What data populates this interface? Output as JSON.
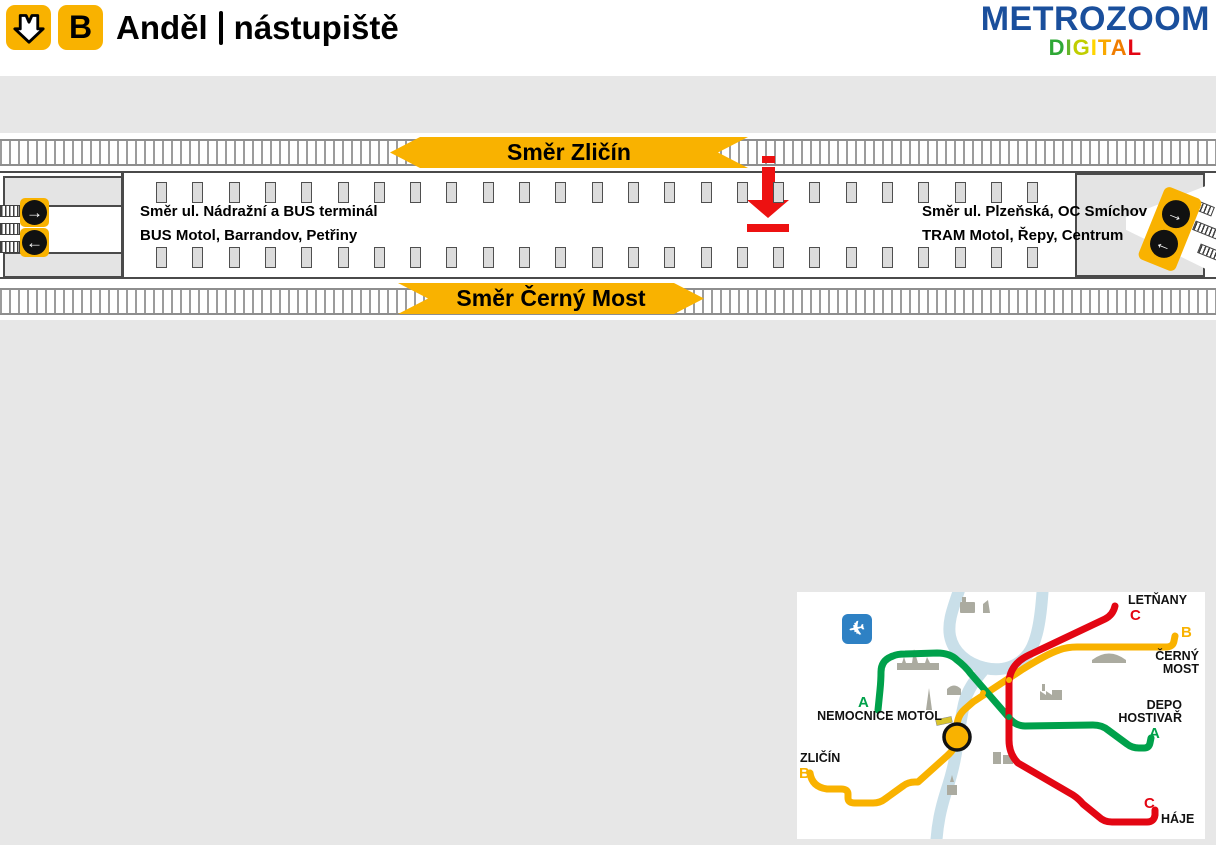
{
  "header": {
    "station_name": "Anděl",
    "subtitle": "nástupiště",
    "line_letter": "B",
    "brand": {
      "name": "METROZOOM",
      "sub": "DIGITAL",
      "sub_colors": [
        "#2FA836",
        "#66B52B",
        "#C0CE00",
        "#FFD500",
        "#F9A800",
        "#F07D00",
        "#E30613"
      ]
    }
  },
  "platform": {
    "banner_top": "Směr Zličín",
    "banner_bottom": "Směr Černý Most",
    "exit_left": {
      "line1": "Směr ul. Nádražní a BUS terminál",
      "line2": "BUS Motol, Barrandov, Petřiny"
    },
    "exit_right": {
      "line1": "Směr ul. Plzeňská, OC Smíchov",
      "line2": "TRAM Motol, Řepy, Centrum"
    },
    "escalator_arrows": {
      "right": "→",
      "left": "←"
    }
  },
  "map": {
    "stations": [
      {
        "name": "LETŇANY",
        "line": "C"
      },
      {
        "name": "ČERNÝ MOST",
        "line": "B"
      },
      {
        "name": "DEPO HOSTIVAŘ",
        "line": "A"
      },
      {
        "name": "NEMOCNICE MOTOL",
        "line": "A"
      },
      {
        "name": "ZLIČÍN",
        "line": "B"
      },
      {
        "name": "HÁJE",
        "line": "C"
      }
    ],
    "lines": [
      {
        "id": "A",
        "color": "#00A14B"
      },
      {
        "id": "B",
        "color": "#F9B200"
      },
      {
        "id": "C",
        "color": "#E30613"
      }
    ]
  },
  "colors": {
    "metro_yellow": "#F9B200",
    "line_a_green": "#00A14B",
    "line_c_red": "#E30613",
    "brand_blue": "#1A4F9C",
    "marker_red": "#ED1111",
    "river_blue": "#C9DFE9"
  }
}
